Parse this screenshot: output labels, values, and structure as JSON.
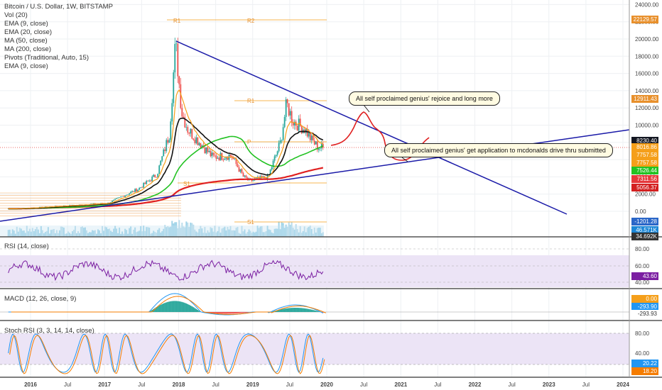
{
  "title": "Bitcoin / U.S. Dollar, 1W, BITSTAMP",
  "legend": [
    "Vol (20)",
    "EMA (9, close)",
    "EMA (20, close)",
    "MA (50, close)",
    "MA (200, close)",
    "Pivots (Traditional, Auto, 15)",
    "EMA (9, close)"
  ],
  "rsi_label": "RSI (14, close)",
  "macd_label": "MACD (12, 26, close, 9)",
  "stoch_label": "Stoch RSI (3, 3, 14, 14, close)",
  "annotations": {
    "top": "All self proclaimed genius' rejoice and long more",
    "bottom": "All self proclaimed genius' get application to mcdonalds drive thru submitted"
  },
  "pivot_labels": [
    "R1",
    "R2",
    "R1",
    "P",
    "S1",
    "S1"
  ],
  "price_axis_ticks": [
    "24000.00",
    "22000.00",
    "20000.00",
    "18000.00",
    "16000.00",
    "14000.00",
    "12000.00",
    "10000.00",
    "8000.00",
    "6000.00",
    "4000.00",
    "2000.00",
    "0.00"
  ],
  "price_tags": [
    {
      "text": "22129.57",
      "color": "#e8902c"
    },
    {
      "text": "12911.43",
      "color": "#e8902c"
    },
    {
      "text": "8230.40",
      "color": "#131722"
    },
    {
      "text": "8016.86",
      "color": "#f59f1a"
    },
    {
      "text": "7757.58",
      "color": "#f59f1a"
    },
    {
      "text": "7757.58",
      "color": "#f59f1a"
    },
    {
      "text": "7526.44",
      "color": "#22c222"
    },
    {
      "text": "7311.56",
      "color": "#e5373a"
    },
    {
      "text": "5056.37",
      "color": "#d32020"
    },
    {
      "text": "-1201.28",
      "color": "#2a66c8"
    },
    {
      "text": "46.571K",
      "color": "#1b86d6"
    },
    {
      "text": "34.692K",
      "color": "#333333"
    }
  ],
  "rsi_ticks": [
    "80.00",
    "60.00",
    "40.00"
  ],
  "rsi_tag": {
    "text": "43.60",
    "color": "#7b1fa2"
  },
  "macd_tags": [
    {
      "text": "0.00",
      "color": "#f59f1a"
    },
    {
      "text": "-293.90",
      "color": "#2196f3"
    },
    {
      "text": "-293.93",
      "color": "#ffffff"
    }
  ],
  "stoch_ticks": [
    "80.00",
    "40.00"
  ],
  "stoch_tags": [
    {
      "text": "20.22",
      "color": "#2196f3"
    },
    {
      "text": "18.20",
      "color": "#f57c00"
    }
  ],
  "time_axis": [
    "2016",
    "Jul",
    "2017",
    "Jul",
    "2018",
    "Jul",
    "2019",
    "Jul",
    "2020",
    "Jul",
    "2021",
    "Jul",
    "2022",
    "Jul",
    "2023",
    "Jul",
    "2024"
  ],
  "colors": {
    "ema9": "#f59f1a",
    "ema20": "#111111",
    "ma50": "#22c222",
    "ma200": "#e02020",
    "trendline": "#1a1aa8",
    "rsi_line": "#7b1fa2",
    "macd_line": "#2196f3",
    "signal_line": "#f57c00",
    "projection": "#e02020"
  },
  "chart_data": {
    "type": "candlestick",
    "title": "Bitcoin / U.S. Dollar, 1W, BITSTAMP",
    "x_range": [
      "2015-09",
      "2024-02"
    ],
    "ylim": [
      -1500,
      24500
    ],
    "price_approx": [
      {
        "date": "2015-10",
        "close": 300
      },
      {
        "date": "2016-06",
        "close": 650
      },
      {
        "date": "2017-01",
        "close": 950
      },
      {
        "date": "2017-06",
        "close": 2600
      },
      {
        "date": "2017-09",
        "close": 4300
      },
      {
        "date": "2017-11",
        "close": 9000
      },
      {
        "date": "2017-12",
        "close": 19500
      },
      {
        "date": "2018-01",
        "close": 11500
      },
      {
        "date": "2018-02",
        "close": 9500
      },
      {
        "date": "2018-06",
        "close": 6300
      },
      {
        "date": "2018-09",
        "close": 6500
      },
      {
        "date": "2018-11",
        "close": 4000
      },
      {
        "date": "2018-12",
        "close": 3500
      },
      {
        "date": "2019-03",
        "close": 4000
      },
      {
        "date": "2019-05",
        "close": 8000
      },
      {
        "date": "2019-06",
        "close": 12500
      },
      {
        "date": "2019-07",
        "close": 10500
      },
      {
        "date": "2019-09",
        "close": 9500
      },
      {
        "date": "2019-10",
        "close": 8300
      },
      {
        "date": "2019-11",
        "close": 7500
      },
      {
        "date": "2019-12",
        "close": 7300
      }
    ],
    "last_values": {
      "close": 8230.4,
      "ema9": 8016.86,
      "ema20": 7757.58,
      "ma50": 7526.44,
      "ma200": 5056.37
    },
    "rsi": {
      "ylim": [
        20,
        100
      ],
      "last": 43.6
    },
    "macd": {
      "last_macd": -293.9,
      "last_hist": -293.93
    },
    "stoch_rsi": {
      "ylim": [
        0,
        100
      ],
      "k": 20.22,
      "d": 18.2
    }
  }
}
